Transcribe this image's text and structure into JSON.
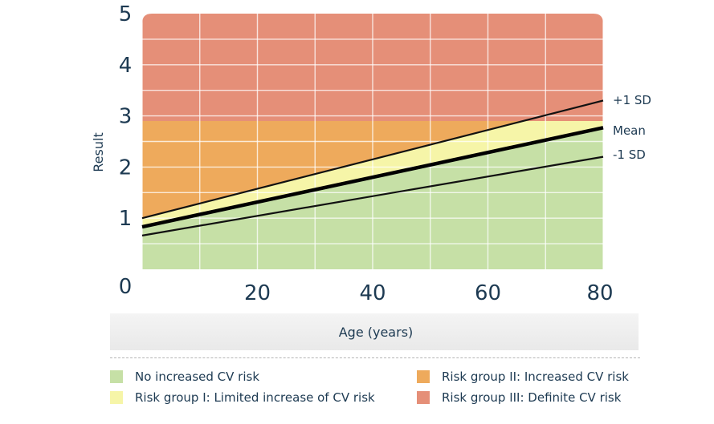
{
  "chart_data": {
    "type": "line",
    "title": "",
    "xlabel": "Age (years)",
    "ylabel": "Result",
    "xlim": [
      0,
      80
    ],
    "ylim": [
      0,
      5
    ],
    "x_ticks": [
      "20",
      "40",
      "60",
      "80"
    ],
    "y_ticks": [
      "0",
      "1",
      "2",
      "3",
      "4",
      "5"
    ],
    "x_origin_label": "0",
    "grid": true,
    "series": [
      {
        "name": "+1 SD",
        "x": [
          0,
          80
        ],
        "y": [
          1.0,
          3.3
        ],
        "color": "#111111"
      },
      {
        "name": "Mean",
        "x": [
          0,
          80
        ],
        "y": [
          0.83,
          2.77
        ],
        "color": "#000000"
      },
      {
        "name": "-1 SD",
        "x": [
          0,
          80
        ],
        "y": [
          0.66,
          2.2
        ],
        "color": "#111111"
      }
    ],
    "regions": [
      {
        "name": "No increased CV risk",
        "color": "#c6e0a6"
      },
      {
        "name": "Risk group I: Limited increase of CV risk",
        "color": "#f6f5a8"
      },
      {
        "name": "Risk group II: Increased CV risk",
        "color": "#eeaa5c"
      },
      {
        "name": "Risk group III: Definite CV risk",
        "color": "#e58f78"
      }
    ],
    "region_boundaries": {
      "risk_group_iii_above": 2.9
    }
  }
}
